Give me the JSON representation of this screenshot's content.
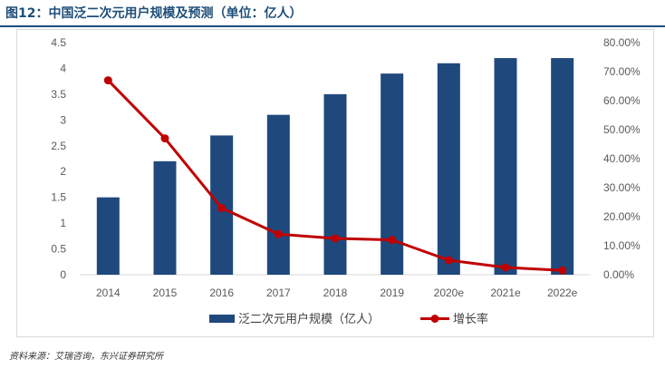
{
  "figure_title": "图12：中国泛二次元用户规模及预测（单位：亿人）",
  "source_note": "资料来源：艾瑞咨询，东兴证券研究所",
  "colors": {
    "bar": "#1f497d",
    "line": "#c00000",
    "title": "#1f4e79",
    "axis": "#d9d9d9",
    "tick_text": "#595959"
  },
  "chart_data": {
    "type": "bar+line",
    "categories": [
      "2014",
      "2015",
      "2016",
      "2017",
      "2018",
      "2019",
      "2020e",
      "2021e",
      "2022e"
    ],
    "series": [
      {
        "name": "泛二次元用户规模（亿人）",
        "type": "bar",
        "axis": "left",
        "values": [
          1.5,
          2.2,
          2.7,
          3.1,
          3.5,
          3.9,
          4.1,
          4.2,
          4.2
        ]
      },
      {
        "name": "增长率",
        "type": "line",
        "axis": "right",
        "values": [
          0.67,
          0.47,
          0.23,
          0.14,
          0.125,
          0.12,
          0.05,
          0.025,
          0.015
        ]
      }
    ],
    "y_left": {
      "ylim": [
        0,
        4.5
      ],
      "ticks": [
        "0",
        "0.5",
        "1",
        "1.5",
        "2",
        "2.5",
        "3",
        "3.5",
        "4",
        "4.5"
      ]
    },
    "y_right": {
      "ylim": [
        0,
        0.8
      ],
      "ticks": [
        "0.00%",
        "10.00%",
        "20.00%",
        "30.00%",
        "40.00%",
        "50.00%",
        "60.00%",
        "70.00%",
        "80.00%"
      ]
    },
    "grid": false,
    "legend_position": "bottom"
  }
}
